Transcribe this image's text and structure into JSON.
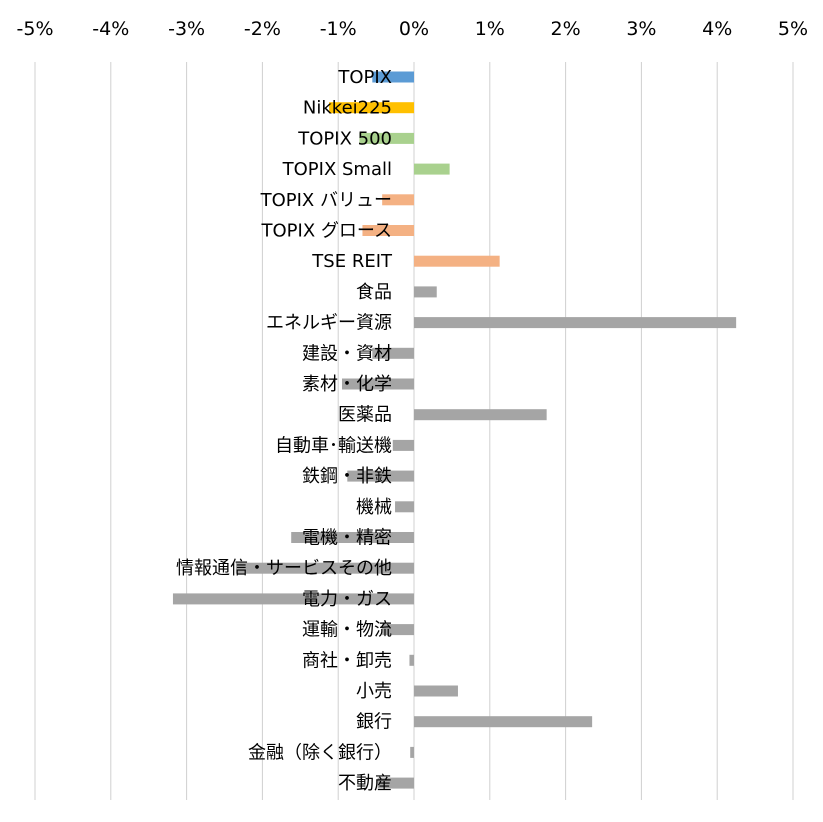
{
  "chart_data": {
    "type": "bar",
    "orientation": "horizontal",
    "title": "",
    "xlabel": "",
    "ylabel": "",
    "xlim": [
      -5,
      5
    ],
    "grid": true,
    "tick_values": [
      -5,
      -4,
      -3,
      -2,
      -1,
      0,
      1,
      2,
      3,
      4,
      5
    ],
    "tick_labels": [
      "-5%",
      "-4%",
      "-3%",
      "-2%",
      "-1%",
      "0%",
      "1%",
      "2%",
      "3%",
      "4%",
      "5%"
    ],
    "unit": "%",
    "colors": {
      "topix": "#5b9bd5",
      "nikkei": "#ffc000",
      "size_index": "#a9d18e",
      "style_reit": "#f4b183",
      "sector": "#a5a5a5"
    },
    "categories": [
      "TOPIX",
      "Nikkei225",
      "TOPIX 500",
      "TOPIX Small",
      "TOPIX バリュー",
      "TOPIX グロース",
      "TSE REIT",
      "食品",
      "エネルギー資源",
      "建設・資材",
      "素材・化学",
      "医薬品",
      "自動車･輸送機",
      "鉄鋼・非鉄",
      "機械",
      "電機・精密",
      "情報通信・サービスその他",
      "電力・ガス",
      "運輸・物流",
      "商社・卸売",
      "小売",
      "銀行",
      "金融（除く銀行）",
      "不動産"
    ],
    "values": [
      -0.55,
      -1.12,
      -0.72,
      0.47,
      -0.42,
      -0.68,
      1.13,
      0.3,
      4.25,
      -0.55,
      -0.95,
      1.75,
      -0.28,
      -0.88,
      -0.25,
      -1.62,
      -2.35,
      -3.18,
      -0.42,
      -0.06,
      0.58,
      2.35,
      -0.05,
      -0.48
    ],
    "bar_colors": [
      "topix",
      "nikkei",
      "size_index",
      "size_index",
      "style_reit",
      "style_reit",
      "style_reit",
      "sector",
      "sector",
      "sector",
      "sector",
      "sector",
      "sector",
      "sector",
      "sector",
      "sector",
      "sector",
      "sector",
      "sector",
      "sector",
      "sector",
      "sector",
      "sector",
      "sector"
    ]
  }
}
